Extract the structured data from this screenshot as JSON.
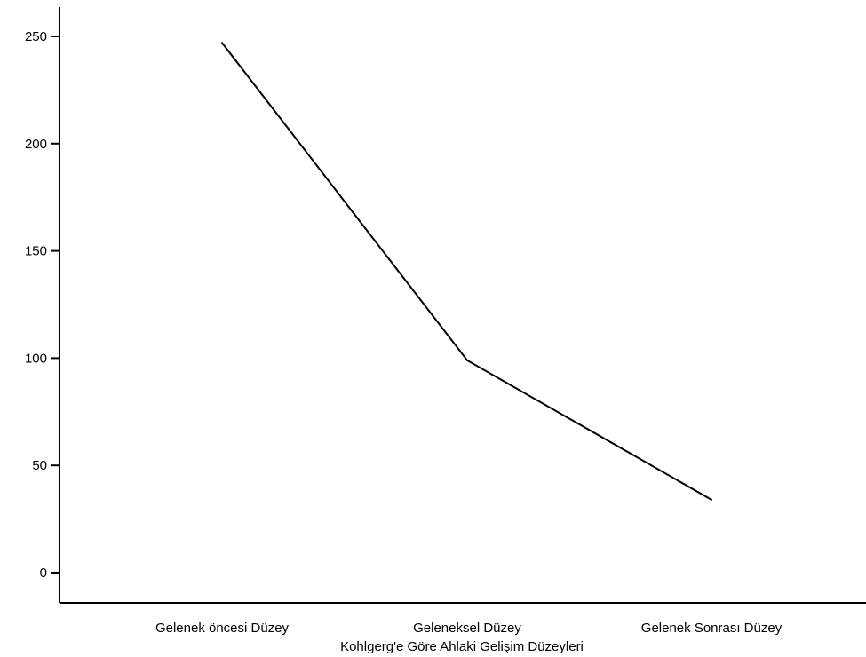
{
  "chart_data": {
    "type": "line",
    "categories": [
      "Gelenek öncesi Düzey",
      "Geleneksel Düzey",
      "Gelenek Sonrası Düzey"
    ],
    "series": [
      {
        "values": [
          247,
          99,
          34
        ]
      }
    ],
    "title": "",
    "xlabel": "Kohlgerg'e Göre Ahlaki Gelişim Düzeyleri",
    "ylabel": "",
    "ylim": [
      0,
      250
    ],
    "yticks": [
      0,
      50,
      100,
      150,
      200,
      250
    ],
    "grid": false,
    "colors": {
      "line": "#000000",
      "axis": "#000000"
    }
  }
}
